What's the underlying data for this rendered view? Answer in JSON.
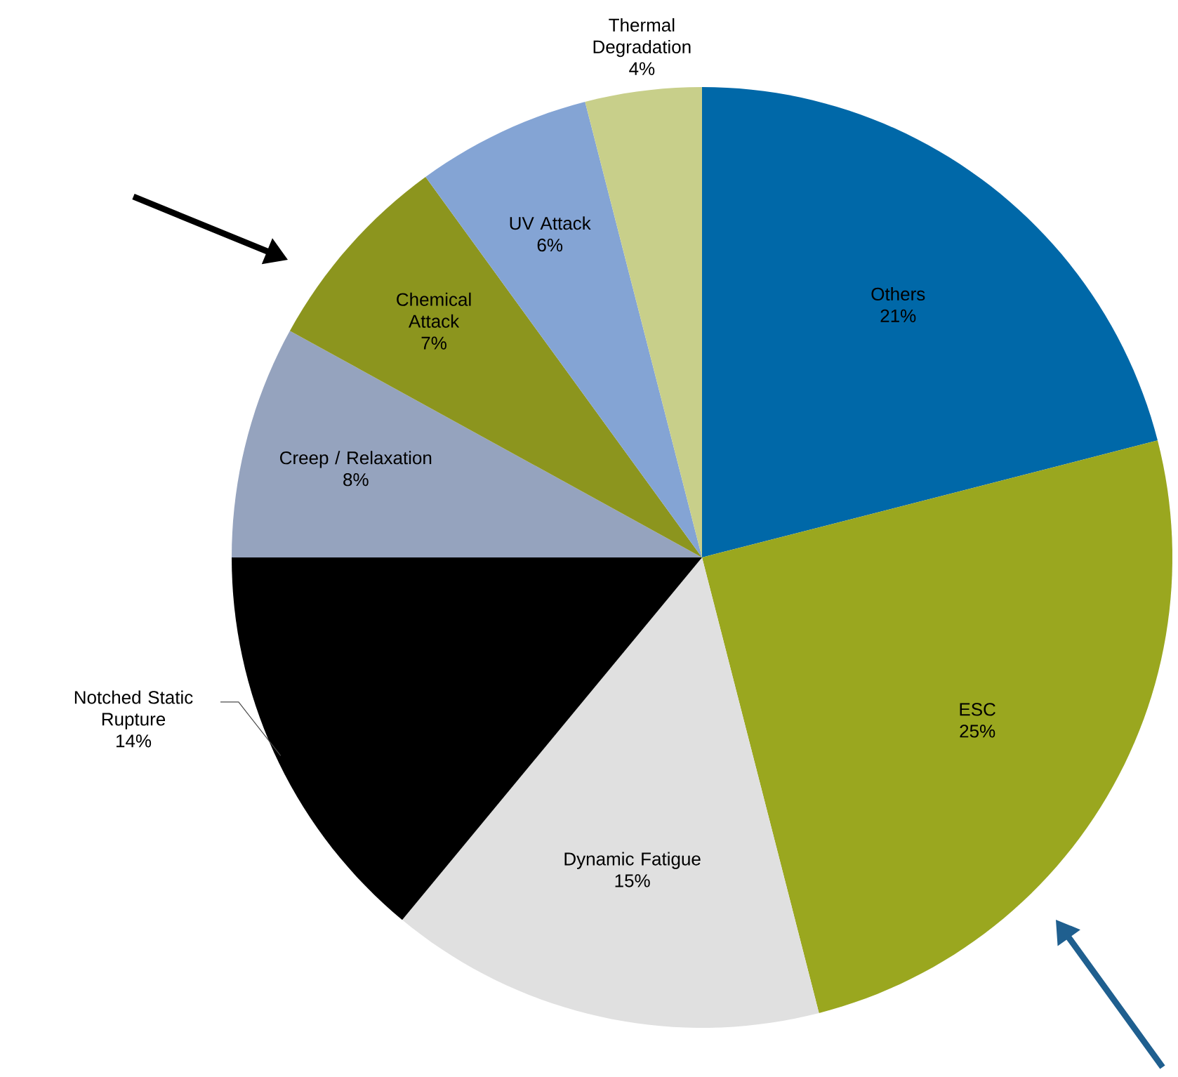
{
  "chart_data": {
    "type": "pie",
    "categories": [
      "Others",
      "ESC",
      "Dynamic Fatigue",
      "Notched Static Rupture",
      "Creep / Relaxation",
      "Chemical Attack",
      "UV Attack",
      "Thermal Degradation"
    ],
    "values": [
      21,
      25,
      15,
      14,
      8,
      7,
      6,
      4
    ],
    "colors": [
      "#0068a8",
      "#9aa71f",
      "#e0e0e0",
      "#000000",
      "#95a3be",
      "#8c951e",
      "#84a4d4",
      "#c8cf8a"
    ],
    "value_labels": [
      "21%",
      "25%",
      "15%",
      "14%",
      "8%",
      "7%",
      "6%",
      "4%"
    ]
  }
}
